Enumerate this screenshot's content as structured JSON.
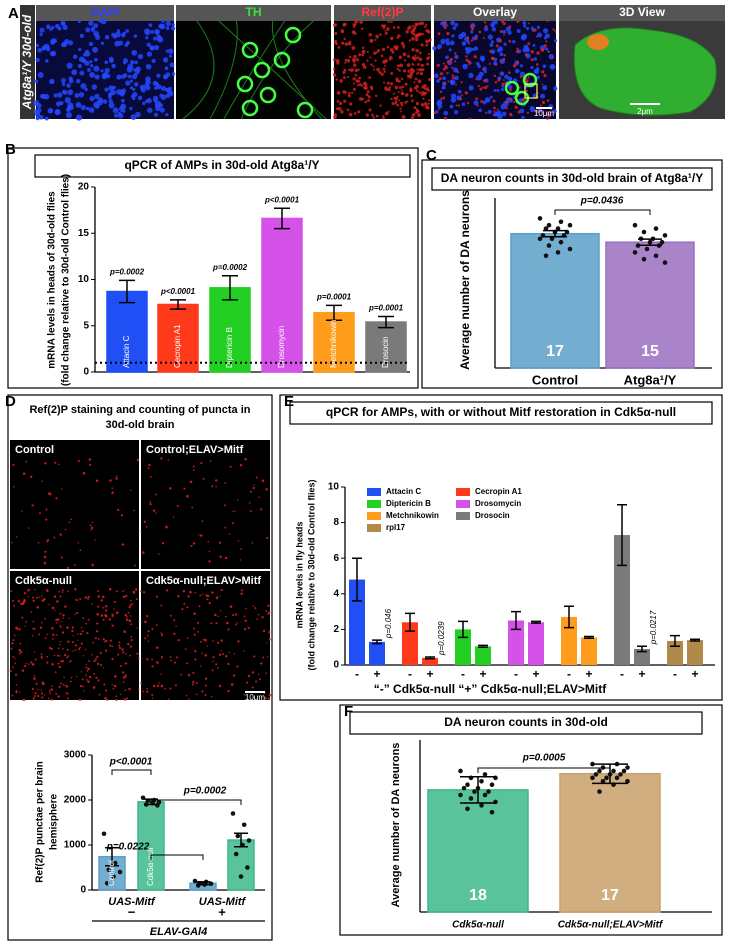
{
  "figure": {
    "panel_labels": [
      "A",
      "B",
      "C",
      "D",
      "E",
      "F"
    ],
    "panel_a": {
      "row_label": "Atg8a¹/Y 30d-old",
      "channels": [
        "DAPI",
        "TH",
        "Ref(2)P",
        "Overlay",
        "3D View"
      ],
      "scale_bars": [
        "10μm",
        "2μm"
      ]
    },
    "panel_d": {
      "title_lines": [
        "Ref(2)P staining and counting of puncta in",
        "30d-old brain"
      ],
      "images": [
        "Control",
        "Control;ELAV>Mitf",
        "Cdk5α-null",
        "Cdk5α-null;ELAV>Mitf"
      ],
      "scale_bar": "10μm"
    }
  },
  "chart_data": [
    {
      "type": "bar",
      "title": "qPCR of AMPs in 30d-old Atg8a¹/Y",
      "ylabel": [
        "mRNA levels in heads of 30d-old flies",
        "(fold change relative to 30d-old Control flies)"
      ],
      "categories": [
        "Attacin C",
        "Cecropin A1",
        "Diptericin B",
        "Drosomycin",
        "Metchnikowin",
        "Drosocin"
      ],
      "values": [
        8.7,
        7.3,
        9.1,
        16.6,
        6.4,
        5.4
      ],
      "errors": [
        1.2,
        0.5,
        1.3,
        1.1,
        0.8,
        0.6
      ],
      "colors": [
        "#1f4ff5",
        "#ff3a1a",
        "#22cf22",
        "#d452e8",
        "#ff9c1c",
        "#7a7a7a"
      ],
      "annotations": [
        "p=0.0002",
        "p<0.0001",
        "p=0.0002",
        "p<0.0001",
        "p=0.0001",
        "p=0.0001"
      ],
      "reference_line": 1,
      "ylim": [
        0,
        20
      ],
      "yticks": [
        0,
        5,
        10,
        15,
        20
      ]
    },
    {
      "type": "bar",
      "title": "DA neuron counts in 30d-old brain of Atg8a¹/Y",
      "ylabel": "Average number of DA neurons",
      "categories": [
        "Control",
        "Atg8a¹/Y"
      ],
      "values": [
        39.5,
        37
      ],
      "errors": [
        0.9,
        0.9
      ],
      "n": [
        17,
        15
      ],
      "points": [
        [
          44,
          43,
          42,
          42,
          41,
          41,
          40,
          40,
          39,
          39,
          38,
          38,
          37,
          36,
          35,
          34,
          33
        ],
        [
          42,
          41,
          40,
          39,
          38,
          38,
          37,
          37,
          36,
          36,
          35,
          34,
          33,
          32,
          31
        ]
      ],
      "colors": [
        "#5b9fc8",
        "#9b6fc0"
      ],
      "annotations": [
        "p=0.0436"
      ],
      "ylim": [
        0,
        50
      ]
    },
    {
      "type": "bar",
      "ylabel": [
        "Ref(2)P punctae per brain",
        "hemisphere"
      ],
      "categories": [
        "Control",
        "Cdk5α-null",
        null,
        null
      ],
      "values": [
        740,
        1960,
        150,
        1110
      ],
      "errors": [
        200,
        60,
        30,
        150
      ],
      "points": [
        [
          1250,
          600,
          450,
          400,
          300,
          150
        ],
        [
          2050,
          2000,
          1980,
          1950,
          1930,
          1900,
          1880
        ],
        [
          200,
          180,
          150,
          140,
          120,
          100
        ],
        [
          1700,
          1450,
          1200,
          1100,
          1000,
          800,
          500,
          300
        ]
      ],
      "colors": [
        "#5b9fc8",
        "#3cb88a",
        "#5b9fc8",
        "#3cb88a"
      ],
      "annotations": [
        "p<0.0001",
        "p=0.0002",
        "p=0.0222"
      ],
      "group_labels": [
        "UAS-Mitf",
        "UAS-Mitf"
      ],
      "signs": [
        "−",
        "+"
      ],
      "driver": "ELAV-GAl4",
      "ylim": [
        0,
        3000
      ],
      "yticks": [
        0,
        1000,
        2000,
        3000
      ]
    },
    {
      "type": "grouped_bar",
      "title": "qPCR for AMPs, with or without Mitf restoration in Cdk5α-null",
      "ylabel": [
        "mRNA levels in fly heads",
        "(fold change relative to 30d-old Control flies)"
      ],
      "categories": [
        "-",
        "+"
      ],
      "series": [
        {
          "name": "Attacin C",
          "color": "#1f4ff5",
          "values": [
            4.8,
            1.3
          ],
          "errors": [
            1.2,
            0.1
          ]
        },
        {
          "name": "Cecropin A1",
          "color": "#ff3a1a",
          "values": [
            2.4,
            0.4
          ],
          "errors": [
            0.5,
            0.05
          ]
        },
        {
          "name": "Diptericin B",
          "color": "#22cf22",
          "values": [
            2.0,
            1.05
          ],
          "errors": [
            0.45,
            0.05
          ]
        },
        {
          "name": "Drosomycin",
          "color": "#d452e8",
          "values": [
            2.5,
            2.4
          ],
          "errors": [
            0.5,
            0.05
          ]
        },
        {
          "name": "Metchnikowin",
          "color": "#ff9c1c",
          "values": [
            2.7,
            1.55
          ],
          "errors": [
            0.6,
            0.05
          ]
        },
        {
          "name": "Drosocin",
          "color": "#7a7a7a",
          "values": [
            7.3,
            0.9
          ],
          "errors": [
            1.7,
            0.15
          ]
        },
        {
          "name": "rpl17",
          "color": "#b08a4a",
          "values": [
            1.35,
            1.4
          ],
          "errors": [
            0.3,
            0.05
          ]
        }
      ],
      "annotations": [
        "p=0.046",
        "p=0.0239",
        "p=0.0217"
      ],
      "footer": "“-” Cdk5α-null  “+” Cdk5α-null;ELAV>Mitf",
      "ylim": [
        0,
        10
      ],
      "yticks": [
        0,
        2,
        4,
        6,
        8,
        10
      ]
    },
    {
      "type": "bar",
      "title": "DA neuron counts in 30d-old",
      "ylabel": "Average number of DA neurons",
      "categories": [
        "Cdk5α-null",
        "Cdk5α-null;ELAV>Mitf"
      ],
      "values": [
        35.5,
        40.2
      ],
      "errors": [
        3.8,
        2.8
      ],
      "n": [
        18,
        17
      ],
      "points": [
        [
          41,
          40,
          39,
          39,
          38,
          37,
          37,
          36,
          36,
          35,
          35,
          34,
          34,
          33,
          32,
          31,
          30,
          29
        ],
        [
          43,
          43,
          42,
          42,
          41,
          41,
          41,
          40,
          40,
          40,
          39,
          39,
          39,
          38,
          38,
          37,
          35
        ]
      ],
      "colors": [
        "#3cb88a",
        "#c9a06a"
      ],
      "annotations": [
        "p=0.0005"
      ],
      "ylim": [
        0,
        50
      ]
    }
  ]
}
